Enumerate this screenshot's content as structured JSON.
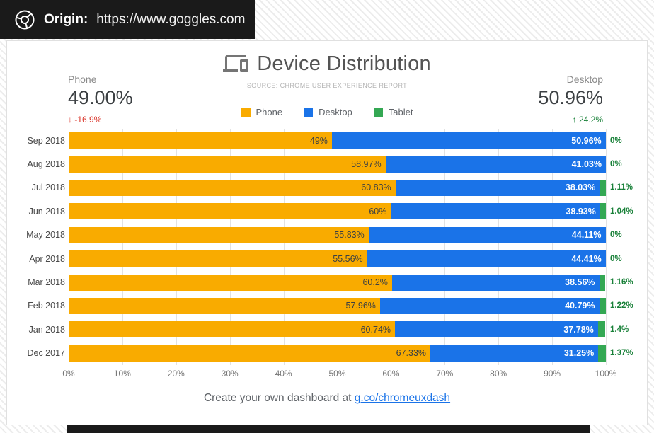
{
  "topbar": {
    "origin_label": "Origin:",
    "origin_url": "https://www.goggles.com"
  },
  "header": {
    "title": "Device Distribution",
    "subtitle": "SOURCE: CHROME USER EXPERIENCE REPORT"
  },
  "stats": {
    "phone": {
      "label": "Phone",
      "value": "49.00%",
      "arrow": "↓",
      "delta": "-16.9%"
    },
    "desktop": {
      "label": "Desktop",
      "value": "50.96%",
      "arrow": "↑",
      "delta": "24.2%"
    }
  },
  "legend": [
    {
      "label": "Phone",
      "color": "#F9AB00"
    },
    {
      "label": "Desktop",
      "color": "#1A73E8"
    },
    {
      "label": "Tablet",
      "color": "#34A853"
    }
  ],
  "icons": {
    "topbar": "chrome-logo",
    "header": "devices",
    "phone_delta": "arrow-down",
    "desktop_delta": "arrow-up"
  },
  "colors": {
    "delta_down": "#D93025",
    "delta_up": "#188038",
    "link": "#1A73E8",
    "grid": "#E2E2E2"
  },
  "chart_data": {
    "type": "bar",
    "orientation": "horizontal",
    "stacked": true,
    "grid": true,
    "xlim": [
      0,
      100
    ],
    "x_ticks": [
      "0%",
      "10%",
      "20%",
      "30%",
      "40%",
      "50%",
      "60%",
      "70%",
      "80%",
      "90%",
      "100%"
    ],
    "categories": [
      "Sep 2018",
      "Aug 2018",
      "Jul 2018",
      "Jun 2018",
      "May 2018",
      "Apr 2018",
      "Mar 2018",
      "Feb 2018",
      "Jan 2018",
      "Dec 2017"
    ],
    "series": [
      {
        "name": "Phone",
        "color": "#F9AB00",
        "values": [
          49,
          58.97,
          60.83,
          60,
          55.83,
          55.56,
          60.2,
          57.96,
          60.74,
          67.33
        ],
        "labels": [
          "49%",
          "58.97%",
          "60.83%",
          "60%",
          "55.83%",
          "55.56%",
          "60.2%",
          "57.96%",
          "60.74%",
          "67.33%"
        ]
      },
      {
        "name": "Desktop",
        "color": "#1A73E8",
        "values": [
          50.96,
          41.03,
          38.03,
          38.93,
          44.11,
          44.41,
          38.56,
          40.79,
          37.78,
          31.25
        ],
        "labels": [
          "50.96%",
          "41.03%",
          "38.03%",
          "38.93%",
          "44.11%",
          "44.41%",
          "38.56%",
          "40.79%",
          "37.78%",
          "31.25%"
        ]
      },
      {
        "name": "Tablet",
        "color": "#34A853",
        "values": [
          0,
          0,
          1.11,
          1.04,
          0,
          0,
          1.16,
          1.22,
          1.4,
          1.37
        ],
        "labels": [
          "0%",
          "0%",
          "1.11%",
          "1.04%",
          "0%",
          "0%",
          "1.16%",
          "1.22%",
          "1.4%",
          "1.37%"
        ]
      }
    ]
  },
  "footer": {
    "text": "Create your own dashboard at",
    "link": "g.co/chromeuxdash"
  }
}
